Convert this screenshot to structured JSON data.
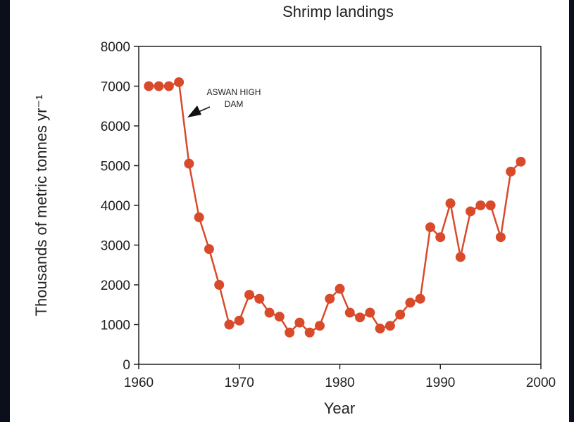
{
  "chart_data": {
    "type": "line",
    "title": "Shrimp landings",
    "x_label": "Year",
    "y_label": "Thousands of metric tonnes yr⁻¹",
    "annotation": [
      "ASWAN HIGH",
      "DAM"
    ],
    "x": [
      1961,
      1962,
      1963,
      1964,
      1965,
      1966,
      1967,
      1968,
      1969,
      1970,
      1971,
      1972,
      1973,
      1974,
      1975,
      1976,
      1977,
      1978,
      1979,
      1980,
      1981,
      1982,
      1983,
      1984,
      1985,
      1986,
      1987,
      1988,
      1989,
      1990,
      1991,
      1992,
      1993,
      1994,
      1995,
      1996,
      1997,
      1998
    ],
    "series": [
      {
        "color": "#d94a2b",
        "values": [
          7000,
          7000,
          7000,
          7100,
          5050,
          3700,
          2900,
          2000,
          1000,
          1100,
          1750,
          1650,
          1300,
          1200,
          800,
          1050,
          800,
          970,
          1650,
          1900,
          1300,
          1180,
          1300,
          900,
          970,
          1250,
          1550,
          1650,
          3450,
          3200,
          4050,
          2700,
          3850,
          4000,
          4000,
          3200,
          4850,
          5100
        ]
      }
    ],
    "xlim": [
      1960,
      2000
    ],
    "xticks": [
      1960,
      1970,
      1980,
      1990,
      2000
    ],
    "ylim": [
      0,
      8000
    ],
    "yticks": [
      0,
      1000,
      2000,
      3000,
      4000,
      5000,
      6000,
      7000,
      8000
    ],
    "grid": false
  }
}
